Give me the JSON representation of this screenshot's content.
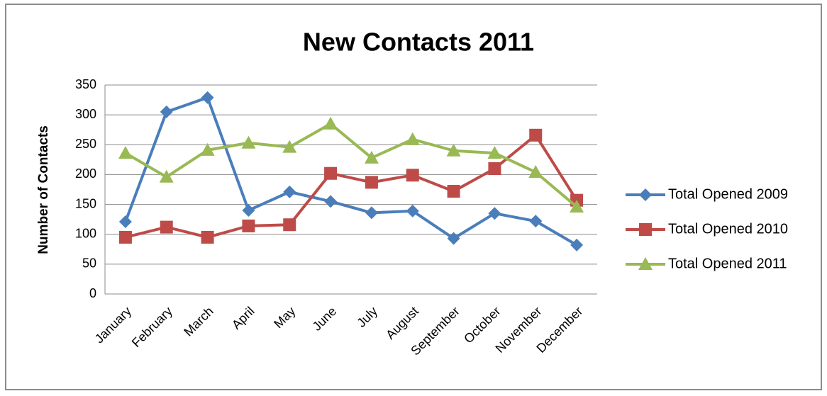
{
  "chart_data": {
    "type": "line",
    "title": "New Contacts 2011",
    "y_label": "Number of Contacts",
    "categories": [
      "January",
      "February",
      "March",
      "April",
      "May",
      "June",
      "July",
      "August",
      "September",
      "October",
      "November",
      "December"
    ],
    "series": [
      {
        "name": "Total Opened 2009",
        "color": "#4a7ebb",
        "marker": "diamond",
        "values": [
          121,
          305,
          329,
          140,
          171,
          155,
          136,
          139,
          93,
          135,
          122,
          82
        ]
      },
      {
        "name": "Total Opened 2010",
        "color": "#be4b48",
        "marker": "square",
        "values": [
          95,
          112,
          95,
          114,
          116,
          202,
          187,
          199,
          172,
          210,
          266,
          157
        ]
      },
      {
        "name": "Total Opened 2011",
        "color": "#98b954",
        "marker": "triangle",
        "values": [
          236,
          196,
          241,
          253,
          246,
          285,
          228,
          259,
          240,
          236,
          204,
          146
        ]
      }
    ],
    "ylim": [
      0,
      350
    ],
    "yticks": [
      0,
      50,
      100,
      150,
      200,
      250,
      300,
      350
    ],
    "grid": true,
    "legend": "right"
  }
}
